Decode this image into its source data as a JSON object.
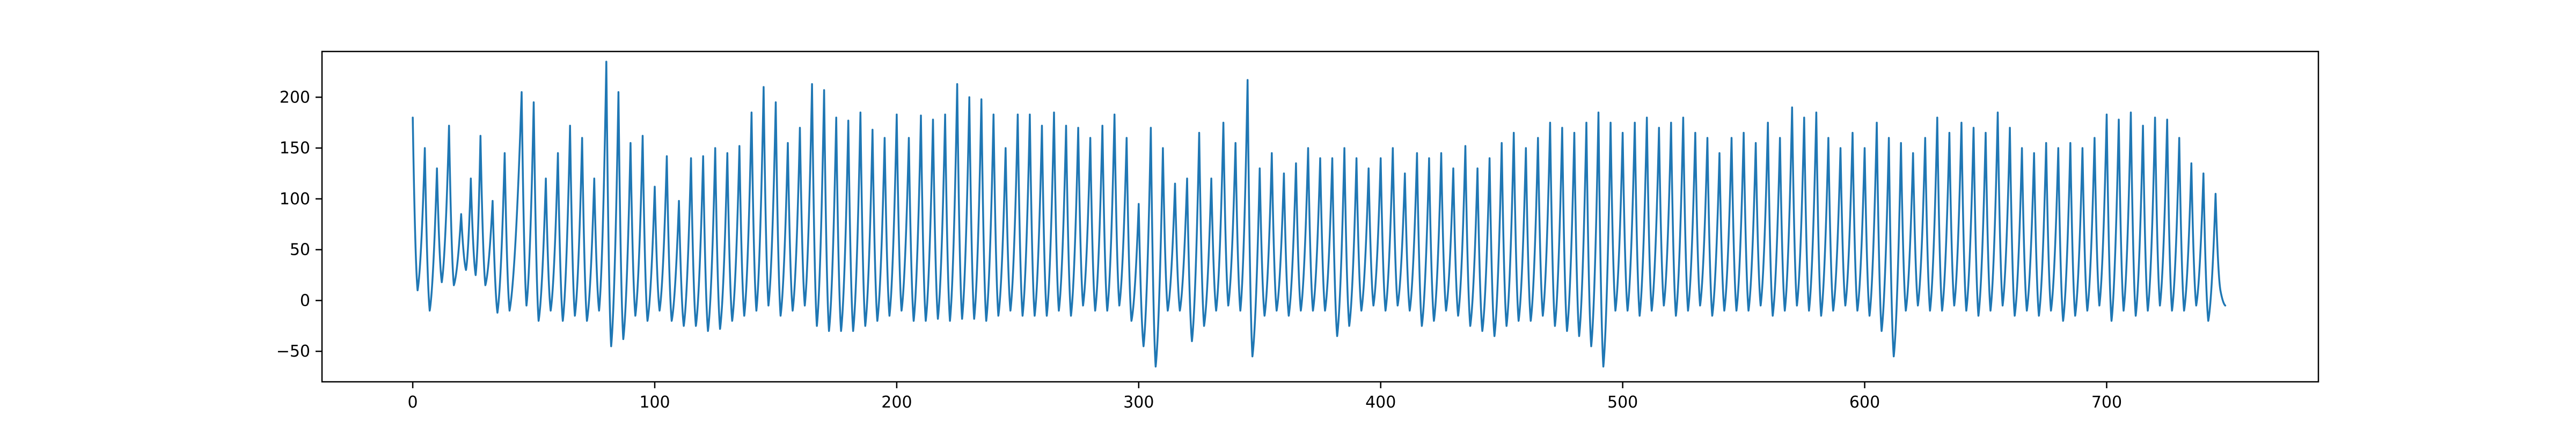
{
  "chart_data": {
    "type": "line",
    "title": "",
    "xlabel": "",
    "ylabel": "",
    "xlim": [
      -37.5,
      787.5
    ],
    "ylim": [
      -80,
      245
    ],
    "x_ticks": [
      0,
      100,
      200,
      300,
      400,
      500,
      600,
      700
    ],
    "y_ticks": [
      -50,
      0,
      50,
      100,
      150,
      200
    ],
    "x_tick_labels": [
      "0",
      "100",
      "200",
      "300",
      "400",
      "500",
      "600",
      "700"
    ],
    "y_tick_labels": [
      "−50",
      "0",
      "50",
      "100",
      "150",
      "200"
    ],
    "grid": false,
    "legend": "none",
    "line_color": "#1f77b4",
    "n_points": 750,
    "series": [
      {
        "peaks": [
          [
            0,
            180
          ],
          [
            5,
            150
          ],
          [
            10,
            130
          ],
          [
            15,
            172
          ],
          [
            20,
            85
          ],
          [
            24,
            120
          ],
          [
            28,
            162
          ],
          [
            33,
            98
          ],
          [
            38,
            145
          ],
          [
            45,
            205
          ],
          [
            50,
            195
          ],
          [
            55,
            120
          ],
          [
            60,
            145
          ],
          [
            65,
            172
          ],
          [
            70,
            160
          ],
          [
            75,
            120
          ],
          [
            80,
            235
          ],
          [
            85,
            205
          ],
          [
            90,
            155
          ],
          [
            95,
            162
          ],
          [
            100,
            112
          ],
          [
            105,
            142
          ],
          [
            110,
            98
          ],
          [
            115,
            140
          ],
          [
            120,
            142
          ],
          [
            125,
            150
          ],
          [
            130,
            145
          ],
          [
            135,
            152
          ],
          [
            140,
            185
          ],
          [
            145,
            210
          ],
          [
            150,
            195
          ],
          [
            155,
            155
          ],
          [
            160,
            170
          ],
          [
            165,
            213
          ],
          [
            170,
            207
          ],
          [
            175,
            180
          ],
          [
            180,
            177
          ],
          [
            185,
            185
          ],
          [
            190,
            168
          ],
          [
            195,
            160
          ],
          [
            200,
            183
          ],
          [
            205,
            160
          ],
          [
            210,
            182
          ],
          [
            215,
            178
          ],
          [
            220,
            183
          ],
          [
            225,
            213
          ],
          [
            230,
            200
          ],
          [
            235,
            198
          ],
          [
            240,
            183
          ],
          [
            245,
            150
          ],
          [
            250,
            183
          ],
          [
            255,
            183
          ],
          [
            260,
            172
          ],
          [
            265,
            185
          ],
          [
            270,
            172
          ],
          [
            275,
            170
          ],
          [
            280,
            160
          ],
          [
            285,
            172
          ],
          [
            290,
            183
          ],
          [
            295,
            160
          ],
          [
            300,
            95
          ],
          [
            305,
            170
          ],
          [
            310,
            150
          ],
          [
            315,
            115
          ],
          [
            320,
            120
          ],
          [
            325,
            165
          ],
          [
            330,
            120
          ],
          [
            335,
            175
          ],
          [
            340,
            155
          ],
          [
            345,
            217
          ],
          [
            350,
            130
          ],
          [
            355,
            145
          ],
          [
            360,
            125
          ],
          [
            365,
            135
          ],
          [
            370,
            150
          ],
          [
            375,
            140
          ],
          [
            380,
            140
          ],
          [
            385,
            150
          ],
          [
            390,
            140
          ],
          [
            395,
            130
          ],
          [
            400,
            140
          ],
          [
            405,
            150
          ],
          [
            410,
            125
          ],
          [
            415,
            145
          ],
          [
            420,
            140
          ],
          [
            425,
            145
          ],
          [
            430,
            130
          ],
          [
            435,
            152
          ],
          [
            440,
            130
          ],
          [
            445,
            140
          ],
          [
            450,
            155
          ],
          [
            455,
            165
          ],
          [
            460,
            150
          ],
          [
            465,
            160
          ],
          [
            470,
            175
          ],
          [
            475,
            170
          ],
          [
            480,
            165
          ],
          [
            485,
            175
          ],
          [
            490,
            185
          ],
          [
            495,
            175
          ],
          [
            500,
            165
          ],
          [
            505,
            175
          ],
          [
            510,
            180
          ],
          [
            515,
            170
          ],
          [
            520,
            175
          ],
          [
            525,
            180
          ],
          [
            530,
            165
          ],
          [
            535,
            160
          ],
          [
            540,
            145
          ],
          [
            545,
            160
          ],
          [
            550,
            165
          ],
          [
            555,
            155
          ],
          [
            560,
            175
          ],
          [
            565,
            160
          ],
          [
            570,
            190
          ],
          [
            575,
            180
          ],
          [
            580,
            185
          ],
          [
            585,
            160
          ],
          [
            590,
            150
          ],
          [
            595,
            165
          ],
          [
            600,
            150
          ],
          [
            605,
            175
          ],
          [
            610,
            160
          ],
          [
            615,
            155
          ],
          [
            620,
            145
          ],
          [
            625,
            160
          ],
          [
            630,
            180
          ],
          [
            635,
            165
          ],
          [
            640,
            175
          ],
          [
            645,
            170
          ],
          [
            650,
            165
          ],
          [
            655,
            185
          ],
          [
            660,
            170
          ],
          [
            665,
            150
          ],
          [
            670,
            145
          ],
          [
            675,
            155
          ],
          [
            680,
            150
          ],
          [
            685,
            155
          ],
          [
            690,
            150
          ],
          [
            695,
            160
          ],
          [
            700,
            183
          ],
          [
            705,
            178
          ],
          [
            710,
            185
          ],
          [
            715,
            172
          ],
          [
            720,
            180
          ],
          [
            725,
            178
          ],
          [
            730,
            160
          ],
          [
            735,
            135
          ],
          [
            740,
            125
          ],
          [
            745,
            105
          ]
        ],
        "troughs": [
          [
            2,
            10
          ],
          [
            7,
            -10
          ],
          [
            12,
            18
          ],
          [
            17,
            15
          ],
          [
            22,
            30
          ],
          [
            26,
            25
          ],
          [
            30,
            15
          ],
          [
            35,
            -12
          ],
          [
            40,
            -10
          ],
          [
            47,
            -5
          ],
          [
            52,
            -20
          ],
          [
            57,
            -10
          ],
          [
            62,
            -20
          ],
          [
            67,
            -15
          ],
          [
            72,
            -20
          ],
          [
            77,
            -10
          ],
          [
            82,
            -45
          ],
          [
            87,
            -38
          ],
          [
            92,
            -15
          ],
          [
            97,
            -20
          ],
          [
            102,
            -10
          ],
          [
            107,
            -20
          ],
          [
            112,
            -25
          ],
          [
            117,
            -25
          ],
          [
            122,
            -30
          ],
          [
            127,
            -28
          ],
          [
            132,
            -20
          ],
          [
            137,
            -15
          ],
          [
            142,
            -10
          ],
          [
            147,
            -5
          ],
          [
            152,
            -15
          ],
          [
            157,
            -10
          ],
          [
            162,
            -5
          ],
          [
            167,
            -25
          ],
          [
            172,
            -30
          ],
          [
            177,
            -30
          ],
          [
            182,
            -30
          ],
          [
            187,
            -25
          ],
          [
            192,
            -20
          ],
          [
            197,
            -15
          ],
          [
            202,
            -10
          ],
          [
            207,
            -20
          ],
          [
            212,
            -20
          ],
          [
            217,
            -18
          ],
          [
            222,
            -20
          ],
          [
            227,
            -18
          ],
          [
            232,
            -18
          ],
          [
            237,
            -20
          ],
          [
            242,
            -15
          ],
          [
            247,
            -10
          ],
          [
            252,
            -15
          ],
          [
            257,
            -15
          ],
          [
            262,
            -15
          ],
          [
            267,
            -10
          ],
          [
            272,
            -15
          ],
          [
            277,
            -5
          ],
          [
            282,
            -10
          ],
          [
            287,
            -10
          ],
          [
            292,
            -5
          ],
          [
            297,
            -20
          ],
          [
            302,
            -45
          ],
          [
            307,
            -65
          ],
          [
            312,
            -10
          ],
          [
            317,
            -10
          ],
          [
            322,
            -40
          ],
          [
            327,
            -25
          ],
          [
            332,
            -10
          ],
          [
            337,
            -5
          ],
          [
            342,
            -10
          ],
          [
            347,
            -55
          ],
          [
            352,
            -15
          ],
          [
            357,
            -10
          ],
          [
            362,
            -15
          ],
          [
            367,
            -10
          ],
          [
            372,
            -10
          ],
          [
            377,
            -10
          ],
          [
            382,
            -35
          ],
          [
            387,
            -25
          ],
          [
            392,
            -10
          ],
          [
            397,
            -5
          ],
          [
            402,
            -10
          ],
          [
            407,
            -5
          ],
          [
            412,
            -10
          ],
          [
            417,
            -25
          ],
          [
            422,
            -20
          ],
          [
            427,
            -10
          ],
          [
            432,
            -15
          ],
          [
            437,
            -25
          ],
          [
            442,
            -30
          ],
          [
            447,
            -35
          ],
          [
            452,
            -25
          ],
          [
            457,
            -20
          ],
          [
            462,
            -20
          ],
          [
            467,
            -15
          ],
          [
            472,
            -25
          ],
          [
            477,
            -30
          ],
          [
            482,
            -35
          ],
          [
            487,
            -45
          ],
          [
            492,
            -65
          ],
          [
            497,
            -10
          ],
          [
            502,
            -10
          ],
          [
            507,
            -15
          ],
          [
            512,
            -10
          ],
          [
            517,
            -5
          ],
          [
            522,
            -15
          ],
          [
            527,
            -10
          ],
          [
            532,
            -5
          ],
          [
            537,
            -15
          ],
          [
            542,
            -10
          ],
          [
            547,
            -10
          ],
          [
            552,
            -10
          ],
          [
            557,
            -5
          ],
          [
            562,
            -15
          ],
          [
            567,
            -10
          ],
          [
            572,
            -5
          ],
          [
            577,
            -10
          ],
          [
            582,
            -15
          ],
          [
            587,
            -10
          ],
          [
            592,
            -5
          ],
          [
            597,
            -10
          ],
          [
            602,
            -15
          ],
          [
            607,
            -30
          ],
          [
            612,
            -55
          ],
          [
            617,
            -10
          ],
          [
            622,
            -5
          ],
          [
            627,
            -10
          ],
          [
            632,
            -10
          ],
          [
            637,
            -5
          ],
          [
            642,
            -10
          ],
          [
            647,
            -15
          ],
          [
            652,
            -10
          ],
          [
            657,
            -5
          ],
          [
            662,
            -15
          ],
          [
            667,
            -10
          ],
          [
            672,
            -15
          ],
          [
            677,
            -10
          ],
          [
            682,
            -20
          ],
          [
            687,
            -15
          ],
          [
            692,
            -10
          ],
          [
            697,
            -5
          ],
          [
            702,
            -20
          ],
          [
            707,
            -10
          ],
          [
            712,
            -15
          ],
          [
            717,
            -10
          ],
          [
            722,
            -5
          ],
          [
            727,
            -10
          ],
          [
            732,
            -10
          ],
          [
            737,
            -5
          ],
          [
            742,
            -20
          ],
          [
            747,
            10
          ]
        ],
        "end": [
          749,
          -5
        ]
      }
    ]
  }
}
